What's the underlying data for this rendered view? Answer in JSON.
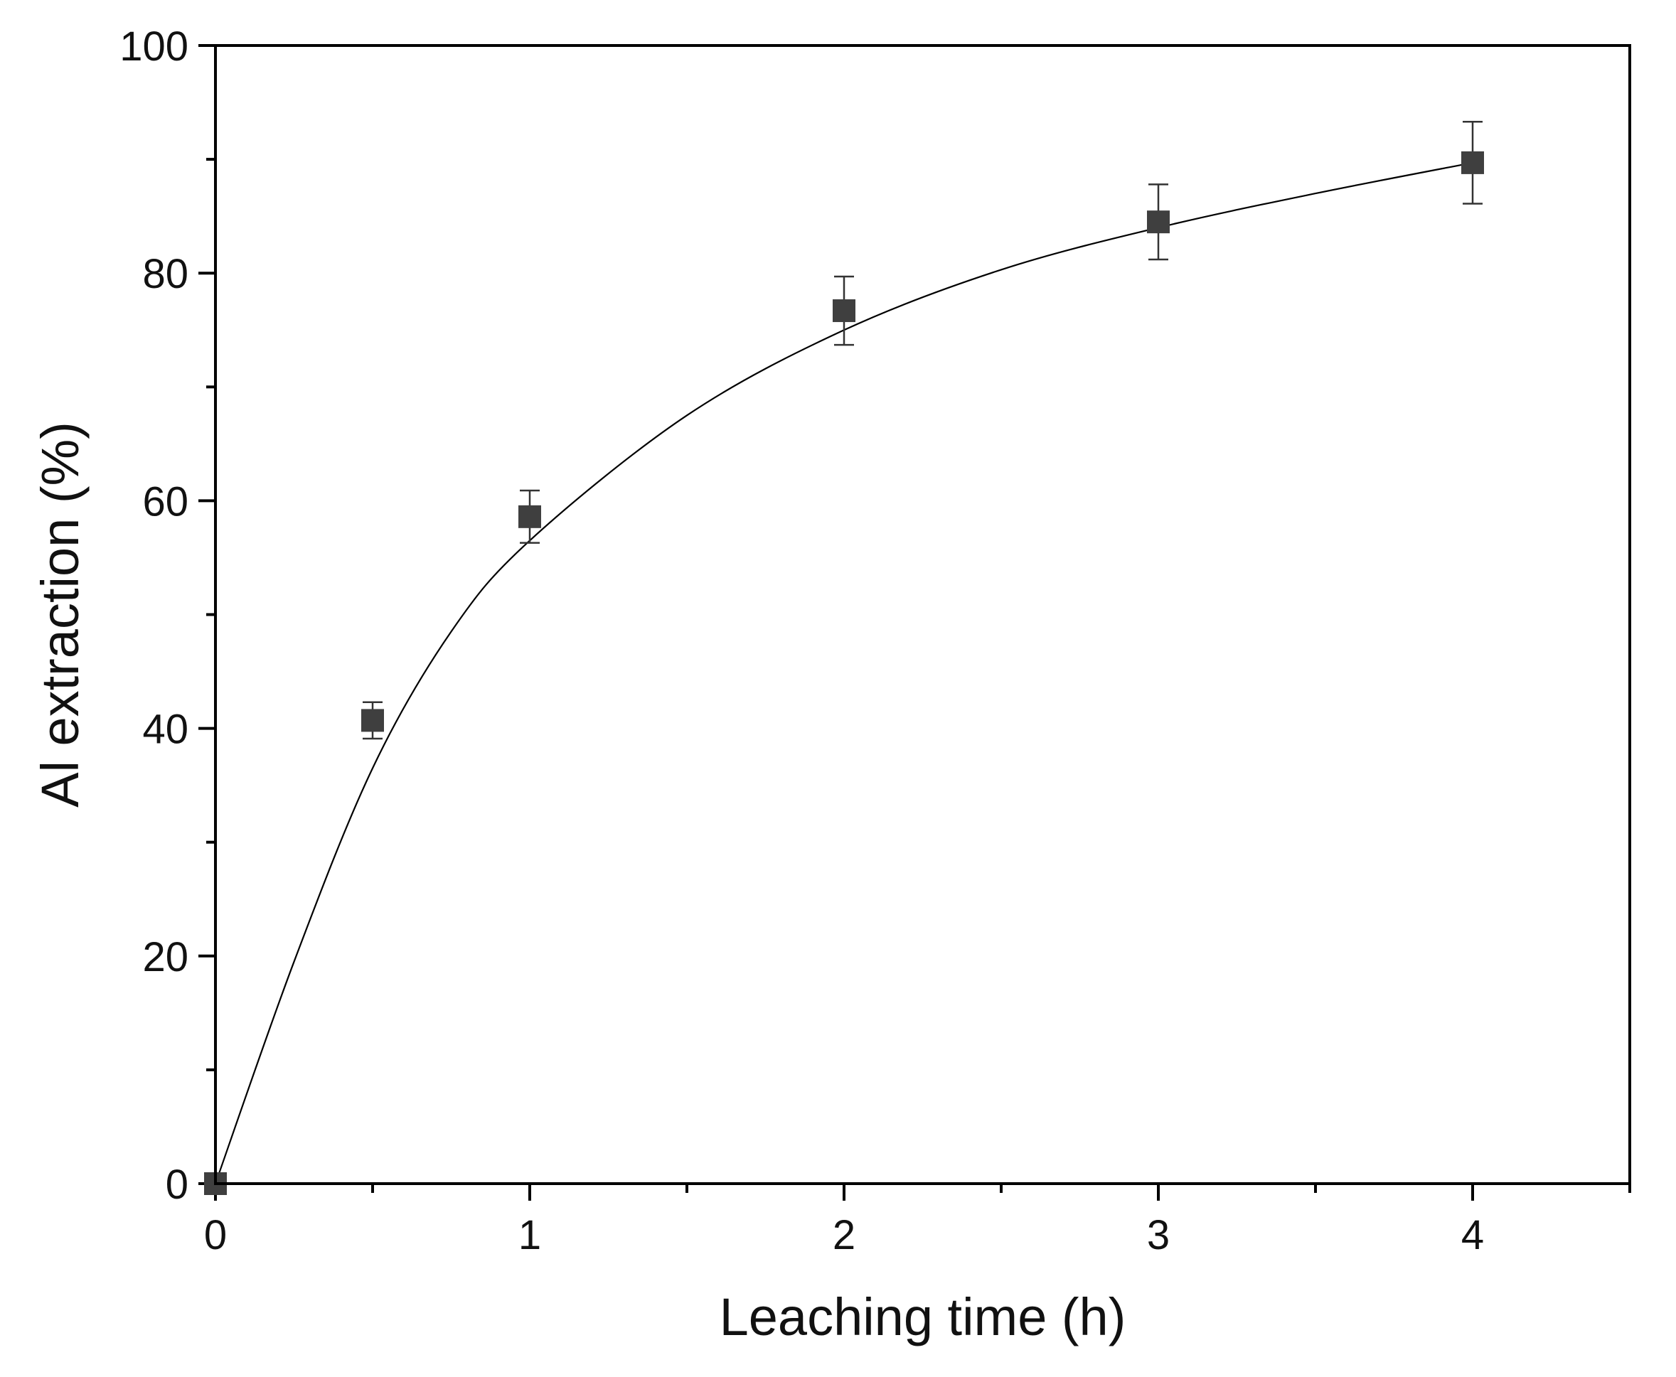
{
  "chart_data": {
    "type": "scatter",
    "title": "",
    "xlabel": "Leaching time (h)",
    "ylabel": "Al extraction (%)",
    "xlim": [
      0,
      4.5
    ],
    "ylim": [
      0,
      100
    ],
    "x_major_ticks": [
      0,
      1,
      2,
      3,
      4
    ],
    "x_minor_ticks": [
      0.5,
      1.5,
      2.5,
      3.5,
      4.5
    ],
    "y_major_ticks": [
      0,
      20,
      40,
      60,
      80,
      100
    ],
    "y_minor_ticks": [
      10,
      30,
      50,
      70,
      90
    ],
    "x_tick_labels": [
      "0",
      "1",
      "2",
      "3",
      "4"
    ],
    "y_tick_labels": [
      "0",
      "20",
      "40",
      "60",
      "80",
      "100"
    ],
    "grid": false,
    "legend": "none",
    "marker_color": "#3f3f3f",
    "line_color": "#000000",
    "points": [
      {
        "x": 0,
        "y": 0,
        "err": 0
      },
      {
        "x": 0.5,
        "y": 40.7,
        "err": 1.6
      },
      {
        "x": 1,
        "y": 58.6,
        "err": 2.3
      },
      {
        "x": 2,
        "y": 76.7,
        "err": 3.0
      },
      {
        "x": 3,
        "y": 84.5,
        "err": 3.3
      },
      {
        "x": 4,
        "y": 89.7,
        "err": 3.6
      }
    ],
    "fit_curve": {
      "x": [
        0,
        0.25,
        0.5,
        0.75,
        1,
        1.5,
        2,
        2.5,
        3,
        3.5,
        4
      ],
      "y": [
        0,
        19.5,
        36.5,
        48.5,
        56.5,
        67.5,
        75.0,
        80.3,
        84.0,
        87.0,
        89.7
      ]
    }
  }
}
